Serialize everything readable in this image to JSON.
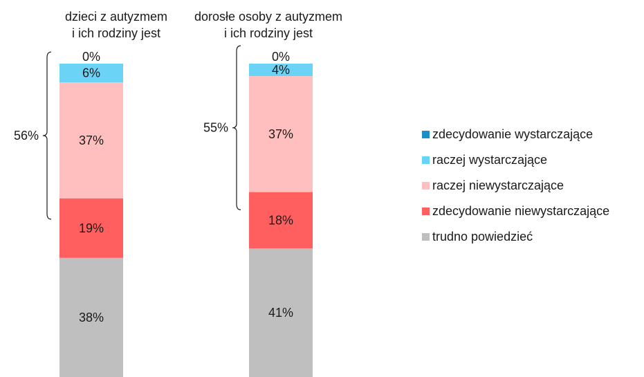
{
  "chart_data": {
    "type": "bar",
    "stacked": true,
    "categories": [
      {
        "title_lines": [
          "dzieci z autyzmem",
          "i ich rodziny jest"
        ],
        "bracket_label": "56%"
      },
      {
        "title_lines": [
          "dorosłe osoby z autyzmem",
          "i ich rodziny jest"
        ],
        "bracket_label": "55%"
      }
    ],
    "series": [
      {
        "name": "zdecydowanie wystarczające",
        "color": "#1c8fc6",
        "values": [
          0,
          0
        ],
        "labels": [
          "0%",
          "0%"
        ]
      },
      {
        "name": "raczej wystarczające",
        "color": "#6bd3f6",
        "values": [
          6,
          4
        ],
        "labels": [
          "6%",
          "4%"
        ]
      },
      {
        "name": "raczej niewystarczające",
        "color": "#ffbfbf",
        "values": [
          37,
          37
        ],
        "labels": [
          "37%",
          "37%"
        ]
      },
      {
        "name": "zdecydowanie niewystarczające",
        "color": "#ff5f5f",
        "values": [
          19,
          18
        ],
        "labels": [
          "19%",
          "18%"
        ]
      },
      {
        "name": "trudno powiedzieć",
        "color": "#bfbfbf",
        "values": [
          38,
          41
        ],
        "labels": [
          "38%",
          "41%"
        ]
      }
    ],
    "legend_position": "right",
    "grid": false,
    "ylim": [
      0,
      100
    ]
  }
}
